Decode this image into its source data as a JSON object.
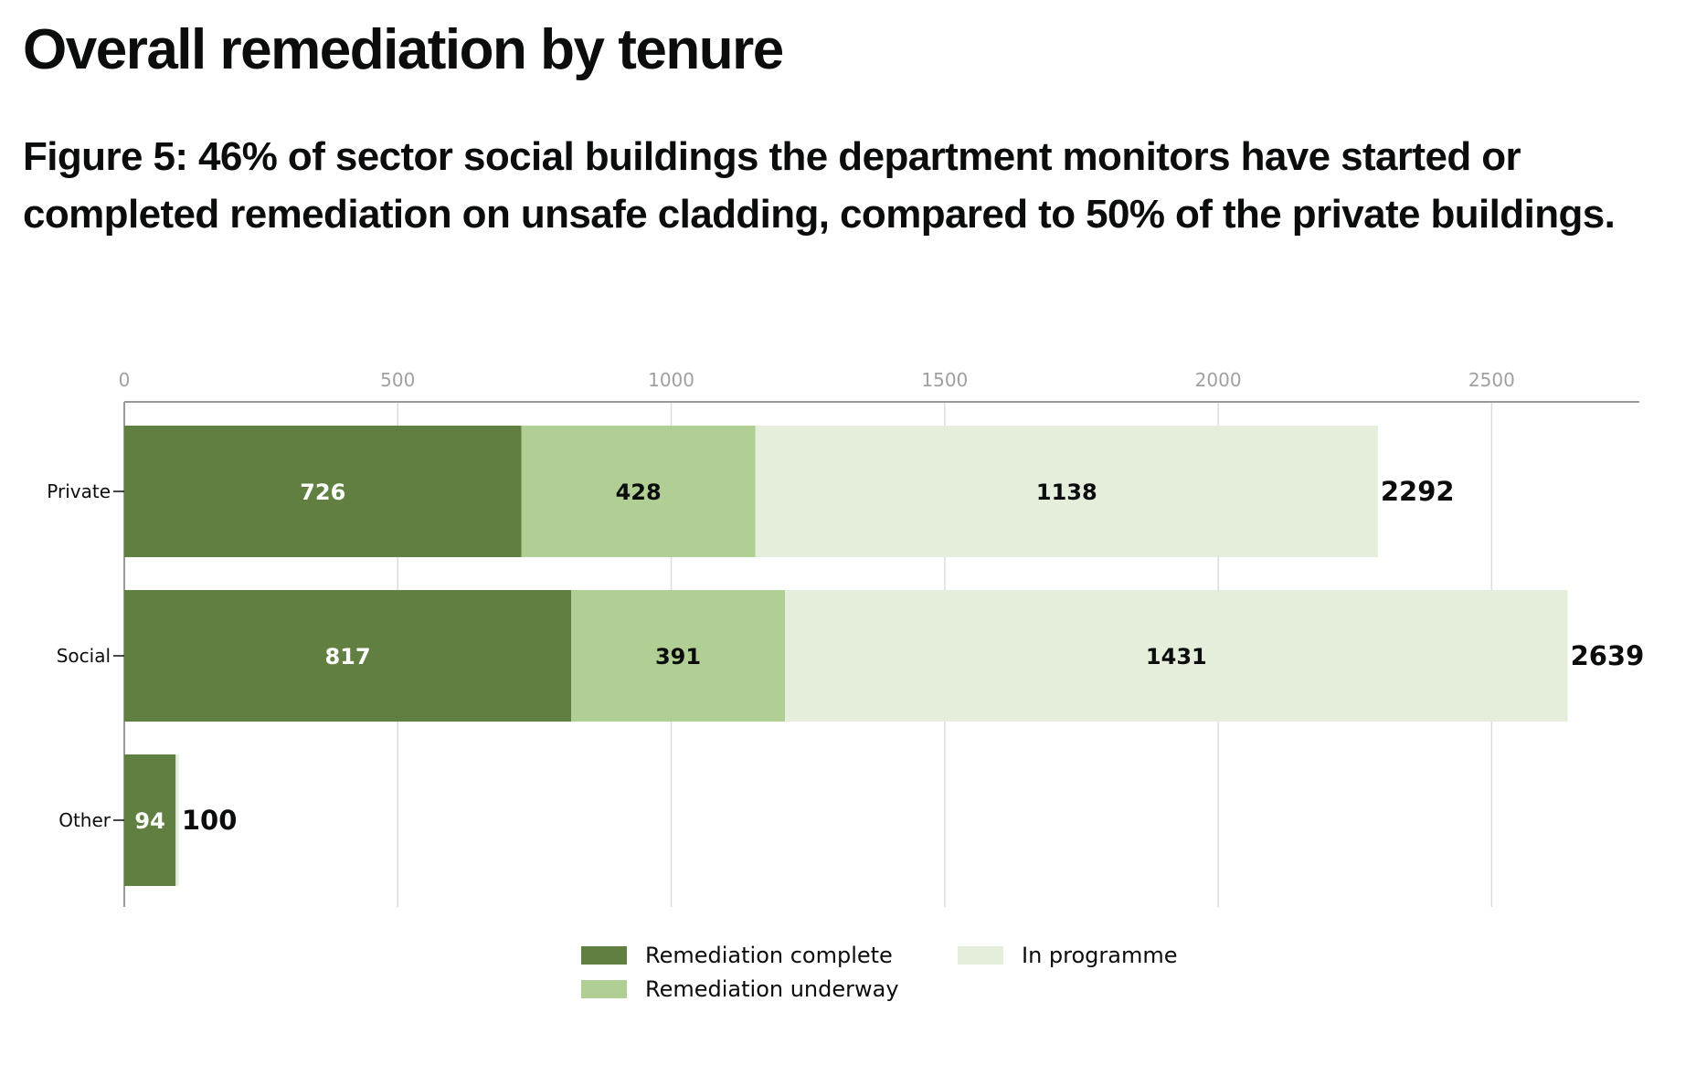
{
  "page": {
    "heading": "Overall remediation by tenure",
    "figure_caption": "Figure 5: 46% of sector social buildings the department monitors have started or completed remediation on unsafe cladding, compared to 50% of the private buildings."
  },
  "chart_data": {
    "type": "bar",
    "orientation": "horizontal",
    "stacked": true,
    "categories": [
      "Private",
      "Social",
      "Other"
    ],
    "series": [
      {
        "name": "Remediation complete",
        "values": [
          726,
          817,
          94
        ],
        "color": "#617f40",
        "label_color": "#ffffff"
      },
      {
        "name": "Remediation underway",
        "values": [
          428,
          391,
          0
        ],
        "color": "#b1cf94",
        "label_color": "#0b0c0c"
      },
      {
        "name": "In programme",
        "values": [
          1138,
          1431,
          6
        ],
        "color": "#e4eedb",
        "label_color": "#0b0c0c"
      }
    ],
    "totals": [
      2292,
      2639,
      100
    ],
    "x_ticks": [
      0,
      500,
      1000,
      1500,
      2000,
      2500
    ],
    "xlim": [
      0,
      2770
    ],
    "xaxis_position": "top",
    "grid": true,
    "legend_position": "bottom-center"
  }
}
